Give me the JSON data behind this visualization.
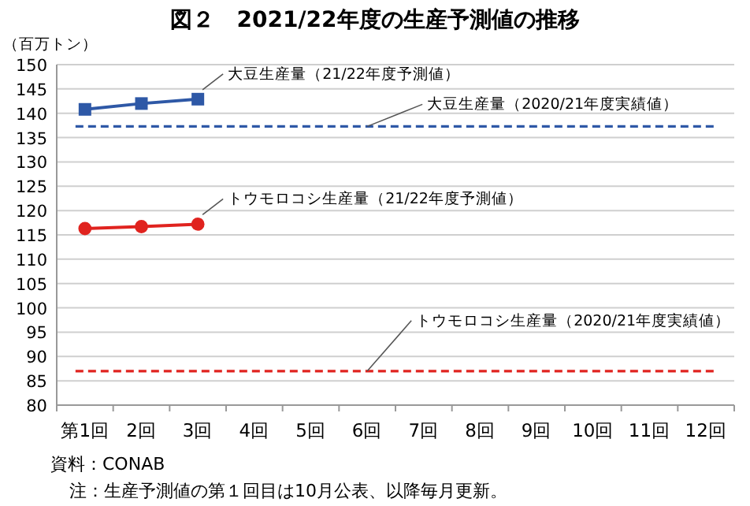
{
  "chart_data": {
    "type": "line",
    "title": "図２　2021/22年度の生産予測値の推移",
    "ylabel": "（百万トン）",
    "categories": [
      "第1回",
      "2回",
      "3回",
      "4回",
      "5回",
      "6回",
      "7回",
      "8回",
      "9回",
      "10回",
      "11回",
      "12回"
    ],
    "series": [
      {
        "name": "大豆生産量（21/22年度予測値）",
        "color": "#2e58a6",
        "marker": "square",
        "values": [
          140.8,
          142.0,
          142.9,
          null,
          null,
          null,
          null,
          null,
          null,
          null,
          null,
          null
        ]
      },
      {
        "name": "トウモロコシ生産量（21/22年度予測値）",
        "color": "#e0231f",
        "marker": "circle",
        "values": [
          116.3,
          116.7,
          117.2,
          null,
          null,
          null,
          null,
          null,
          null,
          null,
          null,
          null
        ]
      }
    ],
    "ref_lines": [
      {
        "axis": "y",
        "value": 137.3,
        "label": "大豆生産量（2020/21年度実績値）",
        "color": "#2e58a6",
        "line_style": "dashed"
      },
      {
        "axis": "y",
        "value": 87.0,
        "label": "トウモロコシ生産量（2020/21年度実績値）",
        "color": "#e0231f",
        "line_style": "dashed"
      }
    ],
    "ylim": [
      80,
      150
    ],
    "yticks": [
      80,
      85,
      90,
      95,
      100,
      105,
      110,
      115,
      120,
      125,
      130,
      135,
      140,
      145,
      150
    ],
    "grid": "y",
    "legend": false,
    "line_style": "solid",
    "annotations": [
      "資料：CONAB",
      "注：生産予測値の第１回目は10月公表、以降毎月更新。"
    ]
  }
}
